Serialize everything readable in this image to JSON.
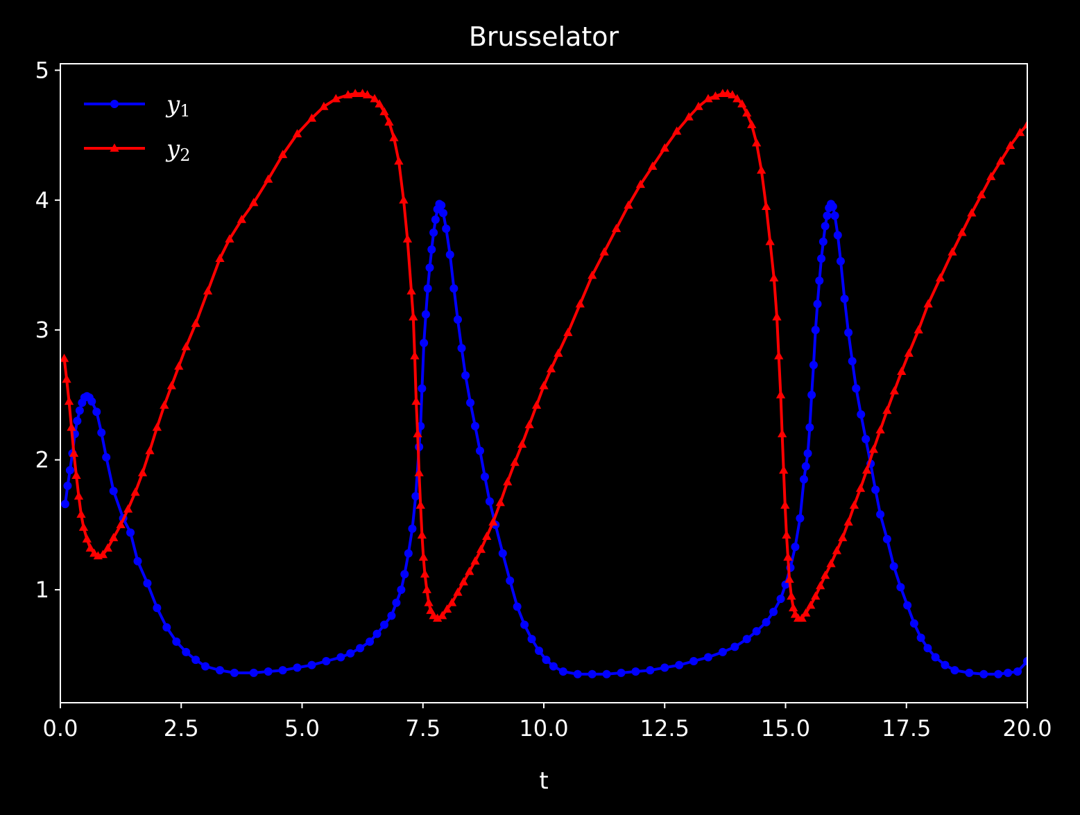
{
  "chart_data": {
    "type": "line",
    "title": "Brusselator",
    "xlabel": "t",
    "ylabel": "",
    "xlim": [
      0,
      20
    ],
    "ylim": [
      0.13,
      5.05
    ],
    "x_ticks": [
      "0.0",
      "2.5",
      "5.0",
      "7.5",
      "10.0",
      "12.5",
      "15.0",
      "17.5",
      "20.0"
    ],
    "y_ticks": [
      "1",
      "2",
      "3",
      "4",
      "5"
    ],
    "grid": false,
    "legend_position": "top-left",
    "background": "#000000",
    "series": [
      {
        "name": "y1",
        "name_base": "y",
        "name_sub": "1",
        "color": "#0000ff",
        "marker": "circle",
        "points": [
          [
            0.1,
            1.66
          ],
          [
            0.15,
            1.8
          ],
          [
            0.2,
            1.92
          ],
          [
            0.25,
            2.05
          ],
          [
            0.3,
            2.2
          ],
          [
            0.35,
            2.3
          ],
          [
            0.4,
            2.38
          ],
          [
            0.45,
            2.44
          ],
          [
            0.5,
            2.48
          ],
          [
            0.55,
            2.49
          ],
          [
            0.6,
            2.48
          ],
          [
            0.65,
            2.45
          ],
          [
            0.75,
            2.37
          ],
          [
            0.85,
            2.21
          ],
          [
            0.95,
            2.02
          ],
          [
            1.1,
            1.76
          ],
          [
            1.3,
            1.55
          ],
          [
            1.45,
            1.44
          ],
          [
            1.6,
            1.22
          ],
          [
            1.8,
            1.05
          ],
          [
            2.0,
            0.86
          ],
          [
            2.2,
            0.71
          ],
          [
            2.4,
            0.6
          ],
          [
            2.6,
            0.52
          ],
          [
            2.8,
            0.46
          ],
          [
            3.0,
            0.41
          ],
          [
            3.3,
            0.38
          ],
          [
            3.6,
            0.36
          ],
          [
            4.0,
            0.36
          ],
          [
            4.3,
            0.37
          ],
          [
            4.6,
            0.38
          ],
          [
            4.9,
            0.4
          ],
          [
            5.2,
            0.42
          ],
          [
            5.5,
            0.45
          ],
          [
            5.8,
            0.48
          ],
          [
            6.0,
            0.51
          ],
          [
            6.2,
            0.55
          ],
          [
            6.4,
            0.6
          ],
          [
            6.55,
            0.66
          ],
          [
            6.7,
            0.73
          ],
          [
            6.85,
            0.8
          ],
          [
            6.95,
            0.9
          ],
          [
            7.05,
            1.0
          ],
          [
            7.12,
            1.12
          ],
          [
            7.2,
            1.28
          ],
          [
            7.28,
            1.47
          ],
          [
            7.35,
            1.72
          ],
          [
            7.42,
            2.1
          ],
          [
            7.45,
            2.26
          ],
          [
            7.48,
            2.55
          ],
          [
            7.52,
            2.9
          ],
          [
            7.56,
            3.12
          ],
          [
            7.6,
            3.32
          ],
          [
            7.64,
            3.48
          ],
          [
            7.68,
            3.62
          ],
          [
            7.72,
            3.75
          ],
          [
            7.76,
            3.85
          ],
          [
            7.8,
            3.93
          ],
          [
            7.84,
            3.97
          ],
          [
            7.88,
            3.96
          ],
          [
            7.92,
            3.9
          ],
          [
            7.98,
            3.78
          ],
          [
            8.06,
            3.58
          ],
          [
            8.14,
            3.32
          ],
          [
            8.22,
            3.08
          ],
          [
            8.3,
            2.86
          ],
          [
            8.38,
            2.65
          ],
          [
            8.48,
            2.44
          ],
          [
            8.58,
            2.26
          ],
          [
            8.68,
            2.07
          ],
          [
            8.78,
            1.87
          ],
          [
            8.88,
            1.68
          ],
          [
            9.0,
            1.5
          ],
          [
            9.15,
            1.28
          ],
          [
            9.3,
            1.07
          ],
          [
            9.45,
            0.87
          ],
          [
            9.6,
            0.73
          ],
          [
            9.75,
            0.62
          ],
          [
            9.9,
            0.53
          ],
          [
            10.05,
            0.46
          ],
          [
            10.2,
            0.41
          ],
          [
            10.4,
            0.37
          ],
          [
            10.7,
            0.35
          ],
          [
            11.0,
            0.35
          ],
          [
            11.3,
            0.35
          ],
          [
            11.6,
            0.36
          ],
          [
            11.9,
            0.37
          ],
          [
            12.2,
            0.38
          ],
          [
            12.5,
            0.4
          ],
          [
            12.8,
            0.42
          ],
          [
            13.1,
            0.45
          ],
          [
            13.4,
            0.48
          ],
          [
            13.7,
            0.52
          ],
          [
            13.95,
            0.56
          ],
          [
            14.2,
            0.62
          ],
          [
            14.4,
            0.68
          ],
          [
            14.6,
            0.75
          ],
          [
            14.75,
            0.83
          ],
          [
            14.9,
            0.93
          ],
          [
            15.0,
            1.04
          ],
          [
            15.1,
            1.17
          ],
          [
            15.2,
            1.33
          ],
          [
            15.3,
            1.55
          ],
          [
            15.38,
            1.85
          ],
          [
            15.42,
            1.95
          ],
          [
            15.46,
            2.05
          ],
          [
            15.5,
            2.25
          ],
          [
            15.54,
            2.5
          ],
          [
            15.58,
            2.73
          ],
          [
            15.62,
            3.0
          ],
          [
            15.66,
            3.2
          ],
          [
            15.7,
            3.38
          ],
          [
            15.74,
            3.55
          ],
          [
            15.78,
            3.68
          ],
          [
            15.82,
            3.8
          ],
          [
            15.86,
            3.88
          ],
          [
            15.9,
            3.94
          ],
          [
            15.94,
            3.97
          ],
          [
            15.98,
            3.95
          ],
          [
            16.02,
            3.88
          ],
          [
            16.08,
            3.73
          ],
          [
            16.14,
            3.53
          ],
          [
            16.22,
            3.24
          ],
          [
            16.3,
            2.98
          ],
          [
            16.38,
            2.76
          ],
          [
            16.46,
            2.55
          ],
          [
            16.56,
            2.35
          ],
          [
            16.66,
            2.16
          ],
          [
            16.76,
            1.97
          ],
          [
            16.86,
            1.77
          ],
          [
            16.96,
            1.58
          ],
          [
            17.1,
            1.39
          ],
          [
            17.24,
            1.18
          ],
          [
            17.38,
            1.02
          ],
          [
            17.52,
            0.88
          ],
          [
            17.66,
            0.74
          ],
          [
            17.8,
            0.63
          ],
          [
            17.94,
            0.55
          ],
          [
            18.1,
            0.48
          ],
          [
            18.3,
            0.42
          ],
          [
            18.5,
            0.38
          ],
          [
            18.8,
            0.36
          ],
          [
            19.1,
            0.35
          ],
          [
            19.4,
            0.35
          ],
          [
            19.6,
            0.36
          ],
          [
            19.8,
            0.37
          ],
          [
            20.0,
            0.45
          ]
        ]
      },
      {
        "name": "y2",
        "name_base": "y",
        "name_sub": "2",
        "color": "#ff0000",
        "marker": "triangle",
        "points": [
          [
            0.08,
            2.78
          ],
          [
            0.13,
            2.62
          ],
          [
            0.18,
            2.45
          ],
          [
            0.23,
            2.25
          ],
          [
            0.28,
            2.05
          ],
          [
            0.33,
            1.88
          ],
          [
            0.38,
            1.72
          ],
          [
            0.43,
            1.58
          ],
          [
            0.48,
            1.48
          ],
          [
            0.55,
            1.39
          ],
          [
            0.62,
            1.32
          ],
          [
            0.7,
            1.28
          ],
          [
            0.78,
            1.26
          ],
          [
            0.88,
            1.27
          ],
          [
            0.98,
            1.32
          ],
          [
            1.1,
            1.4
          ],
          [
            1.25,
            1.5
          ],
          [
            1.4,
            1.62
          ],
          [
            1.55,
            1.75
          ],
          [
            1.7,
            1.9
          ],
          [
            1.85,
            2.07
          ],
          [
            2.0,
            2.25
          ],
          [
            2.15,
            2.42
          ],
          [
            2.3,
            2.57
          ],
          [
            2.45,
            2.72
          ],
          [
            2.6,
            2.87
          ],
          [
            2.8,
            3.05
          ],
          [
            3.05,
            3.3
          ],
          [
            3.3,
            3.55
          ],
          [
            3.5,
            3.7
          ],
          [
            3.75,
            3.85
          ],
          [
            4.0,
            3.98
          ],
          [
            4.3,
            4.16
          ],
          [
            4.6,
            4.35
          ],
          [
            4.9,
            4.51
          ],
          [
            5.2,
            4.63
          ],
          [
            5.45,
            4.72
          ],
          [
            5.7,
            4.78
          ],
          [
            5.95,
            4.81
          ],
          [
            6.1,
            4.82
          ],
          [
            6.25,
            4.82
          ],
          [
            6.35,
            4.81
          ],
          [
            6.5,
            4.78
          ],
          [
            6.6,
            4.74
          ],
          [
            6.7,
            4.68
          ],
          [
            6.8,
            4.6
          ],
          [
            6.9,
            4.48
          ],
          [
            7.0,
            4.3
          ],
          [
            7.1,
            4.0
          ],
          [
            7.18,
            3.7
          ],
          [
            7.26,
            3.3
          ],
          [
            7.3,
            3.1
          ],
          [
            7.33,
            2.8
          ],
          [
            7.36,
            2.45
          ],
          [
            7.39,
            2.2
          ],
          [
            7.42,
            1.9
          ],
          [
            7.45,
            1.65
          ],
          [
            7.48,
            1.42
          ],
          [
            7.51,
            1.25
          ],
          [
            7.54,
            1.12
          ],
          [
            7.58,
            1.0
          ],
          [
            7.62,
            0.9
          ],
          [
            7.66,
            0.84
          ],
          [
            7.72,
            0.8
          ],
          [
            7.8,
            0.78
          ],
          [
            7.9,
            0.8
          ],
          [
            8.0,
            0.85
          ],
          [
            8.1,
            0.9
          ],
          [
            8.22,
            0.98
          ],
          [
            8.34,
            1.06
          ],
          [
            8.46,
            1.14
          ],
          [
            8.58,
            1.22
          ],
          [
            8.7,
            1.31
          ],
          [
            8.82,
            1.41
          ],
          [
            8.95,
            1.52
          ],
          [
            9.1,
            1.67
          ],
          [
            9.25,
            1.83
          ],
          [
            9.4,
            1.98
          ],
          [
            9.55,
            2.12
          ],
          [
            9.7,
            2.27
          ],
          [
            9.85,
            2.42
          ],
          [
            10.0,
            2.57
          ],
          [
            10.15,
            2.7
          ],
          [
            10.3,
            2.82
          ],
          [
            10.5,
            2.98
          ],
          [
            10.75,
            3.2
          ],
          [
            11.0,
            3.42
          ],
          [
            11.25,
            3.6
          ],
          [
            11.5,
            3.78
          ],
          [
            11.75,
            3.96
          ],
          [
            12.0,
            4.12
          ],
          [
            12.25,
            4.26
          ],
          [
            12.5,
            4.4
          ],
          [
            12.75,
            4.53
          ],
          [
            13.0,
            4.64
          ],
          [
            13.2,
            4.72
          ],
          [
            13.4,
            4.78
          ],
          [
            13.55,
            4.8
          ],
          [
            13.7,
            4.82
          ],
          [
            13.8,
            4.82
          ],
          [
            13.9,
            4.81
          ],
          [
            14.0,
            4.78
          ],
          [
            14.1,
            4.74
          ],
          [
            14.2,
            4.67
          ],
          [
            14.3,
            4.58
          ],
          [
            14.4,
            4.44
          ],
          [
            14.5,
            4.23
          ],
          [
            14.6,
            3.95
          ],
          [
            14.68,
            3.68
          ],
          [
            14.76,
            3.4
          ],
          [
            14.82,
            3.1
          ],
          [
            14.86,
            2.8
          ],
          [
            14.9,
            2.5
          ],
          [
            14.93,
            2.2
          ],
          [
            14.96,
            1.92
          ],
          [
            14.99,
            1.65
          ],
          [
            15.02,
            1.42
          ],
          [
            15.05,
            1.25
          ],
          [
            15.08,
            1.08
          ],
          [
            15.12,
            0.95
          ],
          [
            15.16,
            0.86
          ],
          [
            15.2,
            0.81
          ],
          [
            15.26,
            0.78
          ],
          [
            15.34,
            0.78
          ],
          [
            15.42,
            0.82
          ],
          [
            15.52,
            0.88
          ],
          [
            15.62,
            0.95
          ],
          [
            15.72,
            1.03
          ],
          [
            15.82,
            1.11
          ],
          [
            15.94,
            1.2
          ],
          [
            16.06,
            1.3
          ],
          [
            16.18,
            1.4
          ],
          [
            16.3,
            1.52
          ],
          [
            16.42,
            1.65
          ],
          [
            16.55,
            1.78
          ],
          [
            16.68,
            1.92
          ],
          [
            16.82,
            2.08
          ],
          [
            16.96,
            2.23
          ],
          [
            17.1,
            2.38
          ],
          [
            17.25,
            2.53
          ],
          [
            17.4,
            2.68
          ],
          [
            17.55,
            2.82
          ],
          [
            17.75,
            3.0
          ],
          [
            17.95,
            3.2
          ],
          [
            18.2,
            3.4
          ],
          [
            18.45,
            3.6
          ],
          [
            18.65,
            3.75
          ],
          [
            18.85,
            3.9
          ],
          [
            19.05,
            4.04
          ],
          [
            19.25,
            4.18
          ],
          [
            19.45,
            4.3
          ],
          [
            19.65,
            4.42
          ],
          [
            19.85,
            4.52
          ],
          [
            20.0,
            4.58
          ]
        ]
      }
    ]
  }
}
